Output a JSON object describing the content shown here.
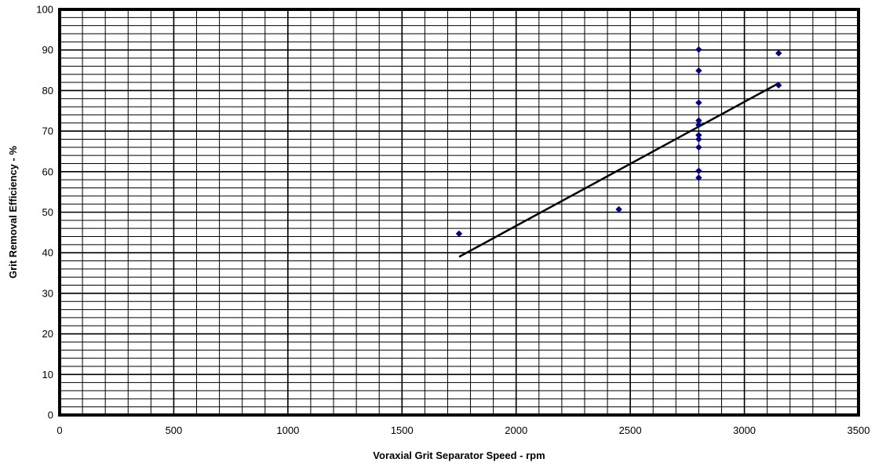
{
  "chart_data": {
    "type": "scatter",
    "title": "",
    "xlabel": "Voraxial Grit Separator Speed - rpm",
    "ylabel": "Grit Removal Efficiency - %",
    "xlim": [
      0,
      3500
    ],
    "ylim": [
      0,
      100
    ],
    "x_ticks": [
      0,
      500,
      1000,
      1500,
      2000,
      2500,
      3000,
      3500
    ],
    "y_ticks": [
      0,
      10,
      20,
      30,
      40,
      50,
      60,
      70,
      80,
      90,
      100
    ],
    "x_minor_step": 100,
    "y_minor_step": 2,
    "grid": true,
    "legend": "none",
    "series": [
      {
        "marker": "diamond",
        "color": "#000080",
        "points": [
          {
            "x": 1750,
            "y": 44.7
          },
          {
            "x": 2450,
            "y": 50.7
          },
          {
            "x": 2800,
            "y": 90.1
          },
          {
            "x": 2800,
            "y": 84.9
          },
          {
            "x": 2800,
            "y": 77.0
          },
          {
            "x": 2800,
            "y": 72.6
          },
          {
            "x": 2800,
            "y": 71.5
          },
          {
            "x": 2800,
            "y": 69.0
          },
          {
            "x": 2800,
            "y": 68.0
          },
          {
            "x": 2800,
            "y": 66.0
          },
          {
            "x": 2800,
            "y": 60.2
          },
          {
            "x": 2800,
            "y": 58.5
          },
          {
            "x": 3150,
            "y": 89.2
          },
          {
            "x": 3150,
            "y": 81.3
          }
        ]
      }
    ],
    "trendline": {
      "color": "#000000",
      "points": [
        {
          "x": 1750,
          "y": 39.0
        },
        {
          "x": 3150,
          "y": 81.8
        }
      ]
    }
  }
}
